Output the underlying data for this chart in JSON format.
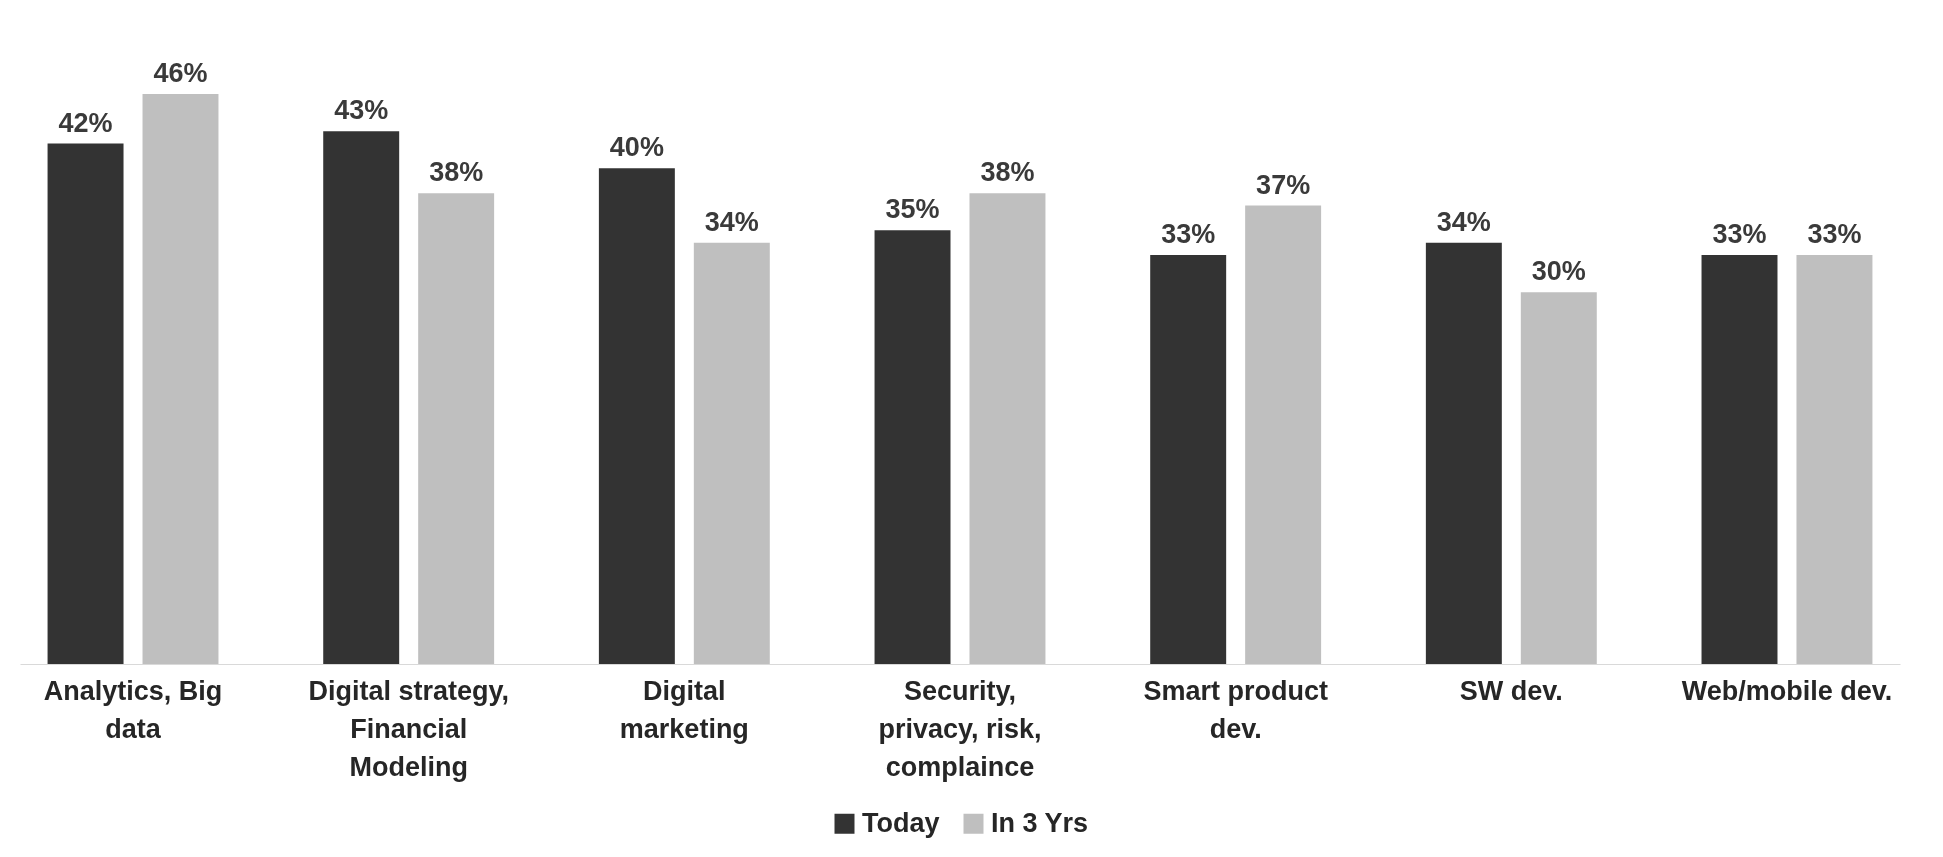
{
  "chart_data": {
    "type": "bar",
    "categories": [
      "Analytics, Big data",
      "Digital strategy, Financial Modeling",
      "Digital marketing",
      "Security, privacy, risk, complaince",
      "Smart product dev.",
      "SW dev.",
      "Web/mobile dev."
    ],
    "series": [
      {
        "name": "Today",
        "color": "#333333",
        "values": [
          42,
          43,
          40,
          35,
          33,
          34,
          33
        ],
        "value_labels": [
          "42%",
          "43%",
          "40%",
          "35%",
          "33%",
          "34%",
          "33%"
        ]
      },
      {
        "name": "In 3 Yrs",
        "color": "#bfbfbf",
        "values": [
          46,
          38,
          34,
          38,
          37,
          30,
          33
        ],
        "value_labels": [
          "46%",
          "38%",
          "34%",
          "38%",
          "37%",
          "30%",
          "33%"
        ]
      }
    ],
    "legend": "bottom"
  }
}
